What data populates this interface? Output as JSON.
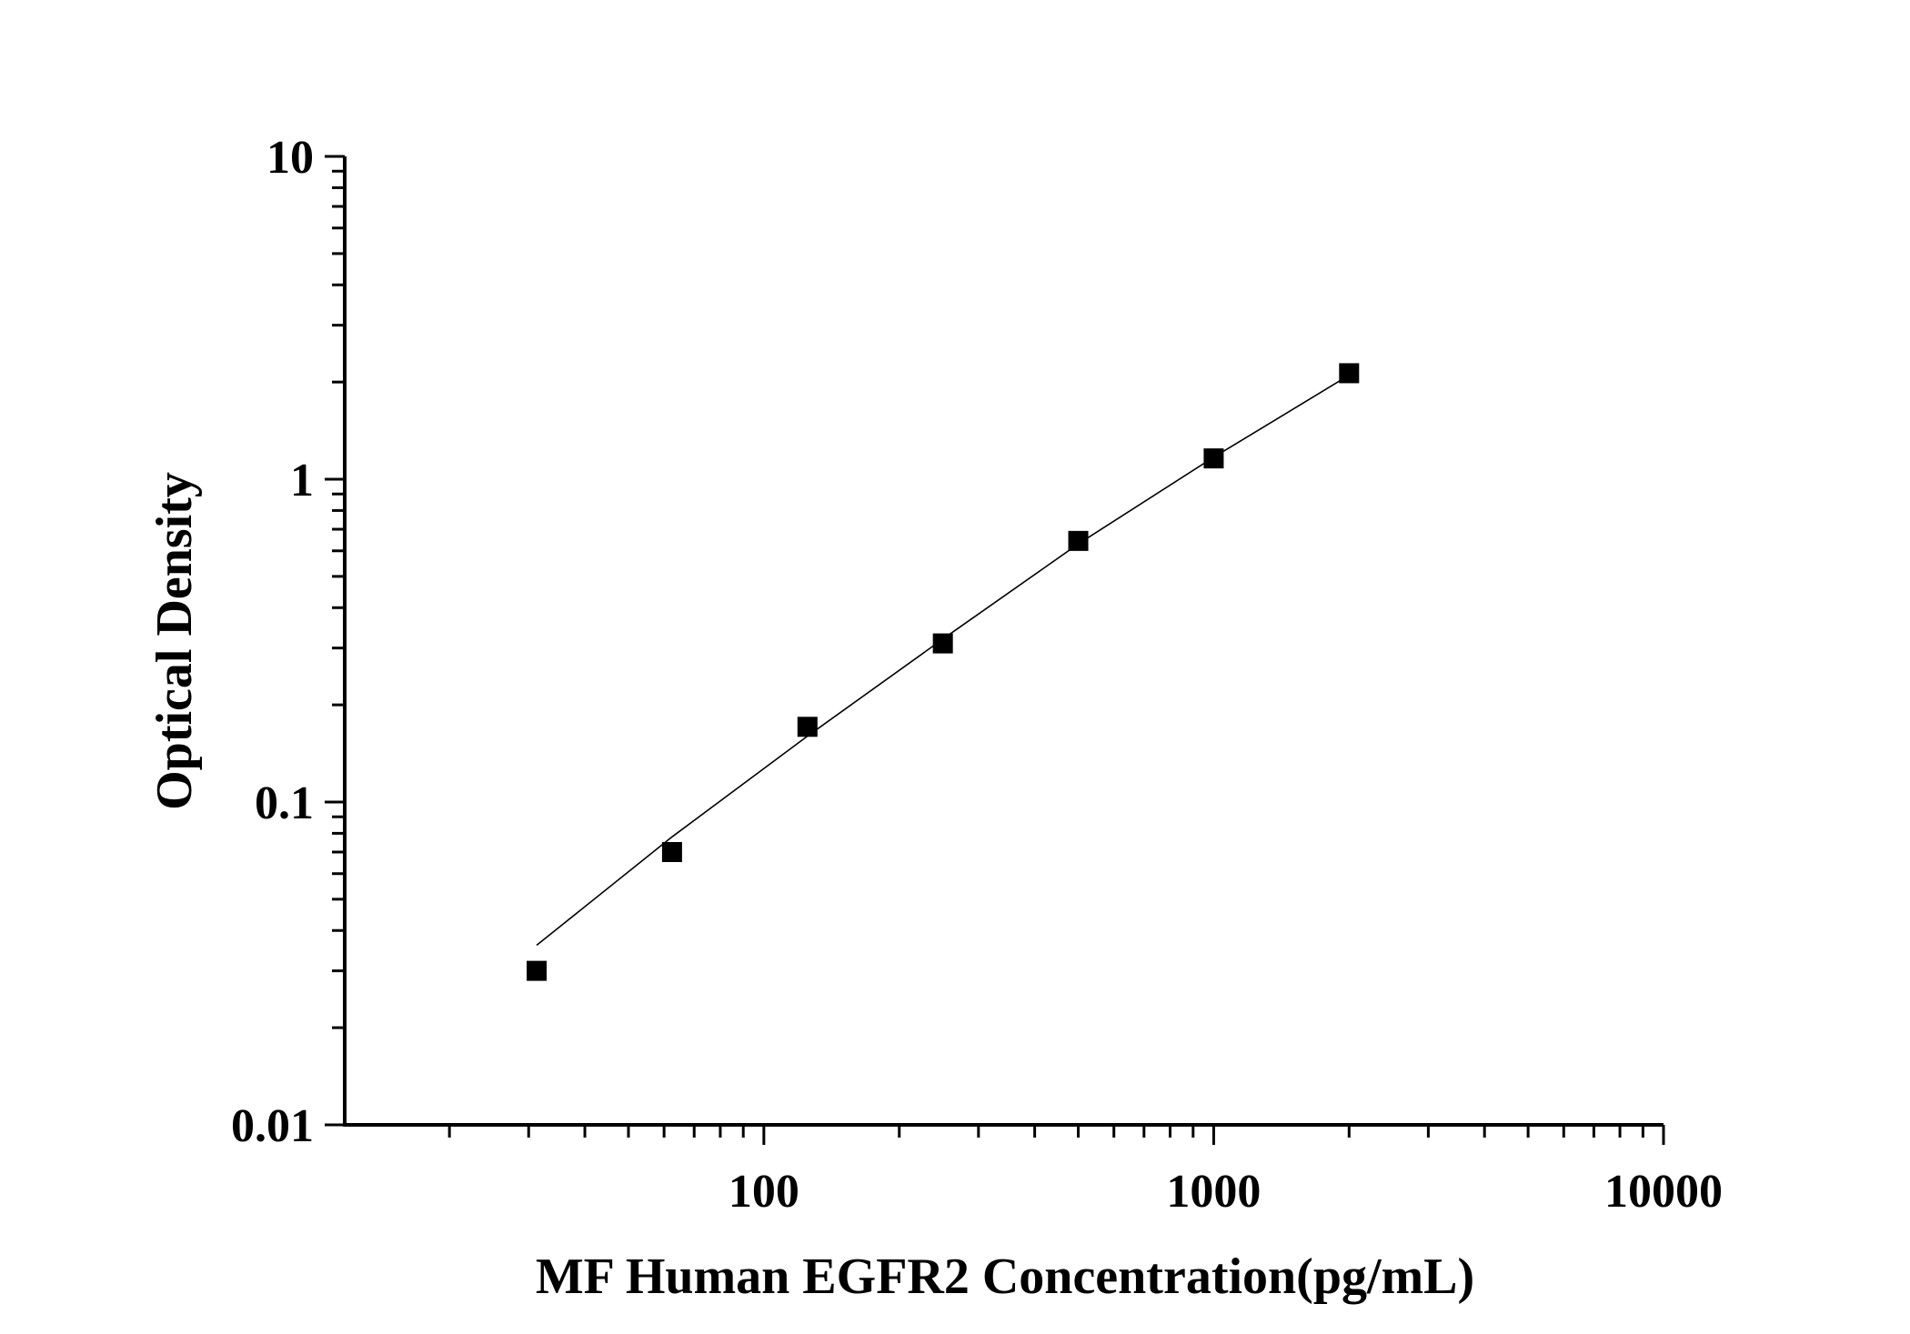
{
  "chart_data": {
    "type": "scatter",
    "title": "",
    "xlabel": "MF Human EGFR2 Concentration(pg/mL)",
    "ylabel": "Optical Density",
    "x_scale": "log",
    "y_scale": "log",
    "xlim": [
      11.7,
      10000
    ],
    "ylim": [
      0.01,
      10
    ],
    "x_ticks": [
      "100",
      "1000",
      "10000"
    ],
    "x_tick_values": [
      100,
      1000,
      10000
    ],
    "y_ticks": [
      "0.01",
      "0.1",
      "1",
      "10"
    ],
    "y_tick_values": [
      0.01,
      0.1,
      1,
      10
    ],
    "grid": false,
    "marker": "square",
    "color": "#000000",
    "series": [
      {
        "x": [
          31.25,
          62.5,
          125,
          250,
          500,
          1000,
          2000
        ],
        "y": [
          0.03,
          0.07,
          0.171,
          0.31,
          0.644,
          1.16,
          2.13
        ]
      }
    ],
    "fit_curve": {
      "x": [
        31.25,
        62.5,
        125,
        250,
        500,
        1000,
        2000
      ],
      "y": [
        0.036,
        0.078,
        0.16,
        0.32,
        0.63,
        1.17,
        2.1
      ]
    }
  }
}
